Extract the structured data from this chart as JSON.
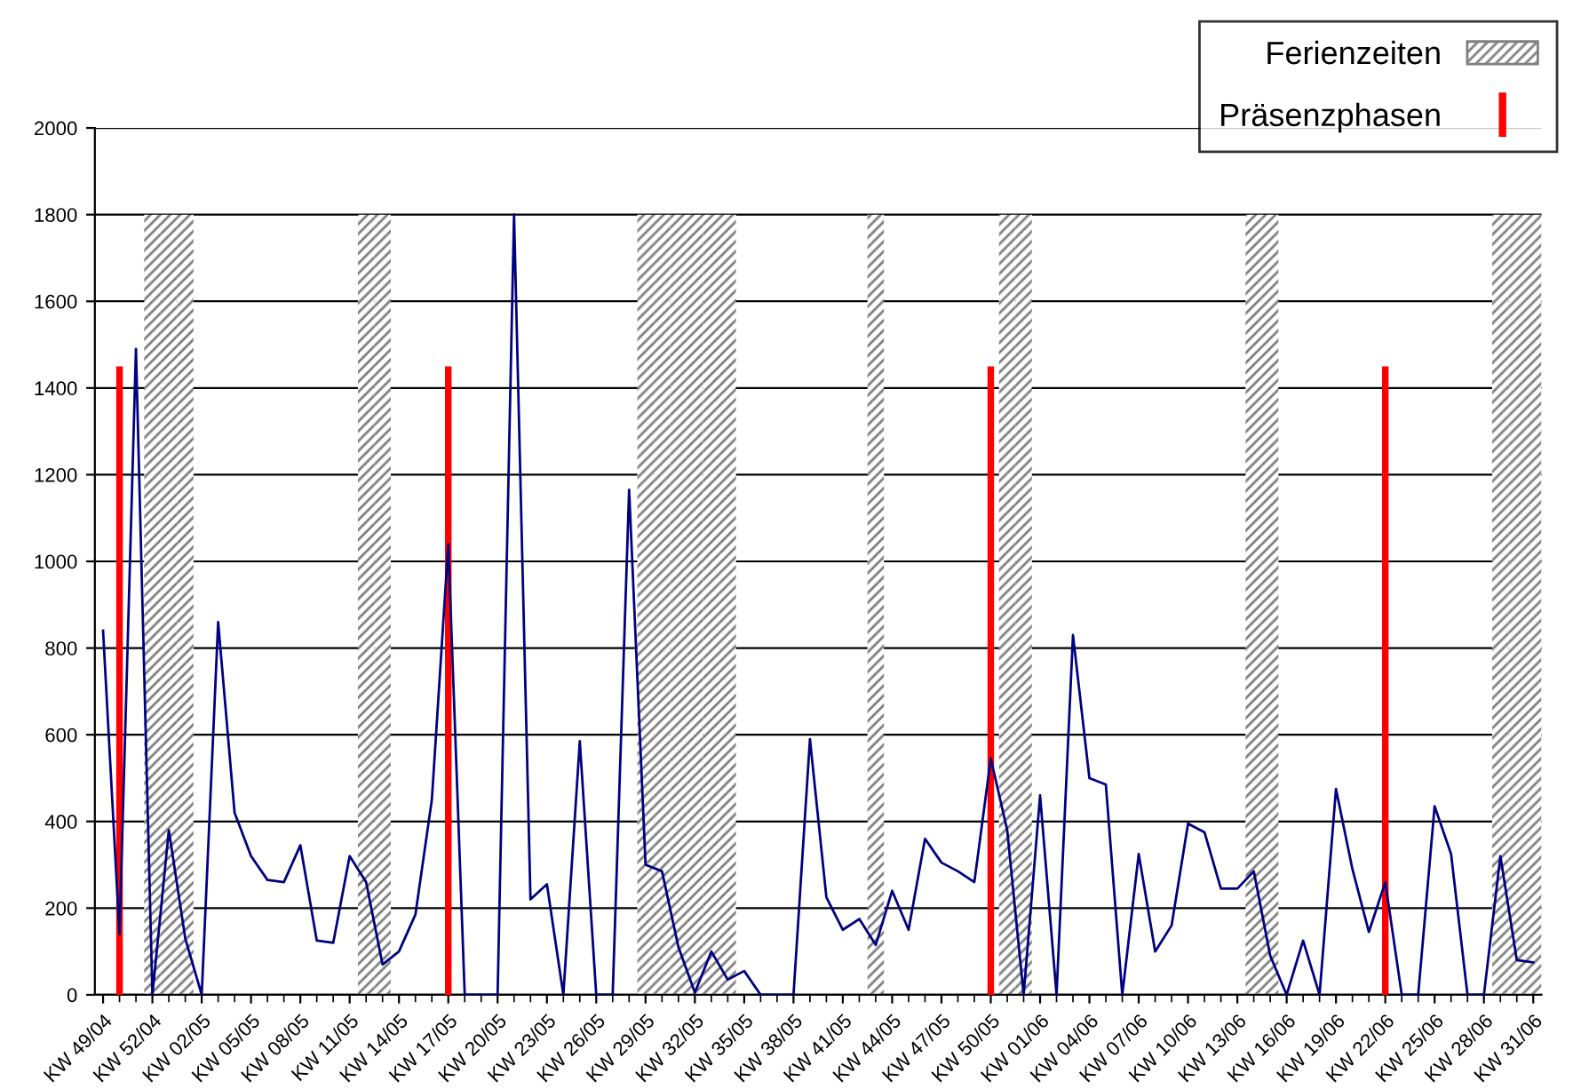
{
  "chart_data": {
    "type": "line",
    "categories": [
      "KW 49/04",
      null,
      null,
      "KW 52/04",
      null,
      null,
      "KW 02/05",
      null,
      null,
      "KW 05/05",
      null,
      null,
      "KW 08/05",
      null,
      null,
      "KW 11/05",
      null,
      null,
      "KW 14/05",
      null,
      null,
      "KW 17/05",
      null,
      null,
      "KW 20/05",
      null,
      null,
      "KW 23/05",
      null,
      null,
      "KW 26/05",
      null,
      null,
      "KW 29/05",
      null,
      null,
      "KW 32/05",
      null,
      null,
      "KW 35/05",
      null,
      null,
      "KW 38/05",
      null,
      null,
      "KW 41/05",
      null,
      null,
      "KW 44/05",
      null,
      null,
      "KW 47/05",
      null,
      null,
      "KW 50/05",
      null,
      null,
      "KW 01/06",
      null,
      null,
      "KW 04/06",
      null,
      null,
      "KW 07/06",
      null,
      null,
      "KW 10/06",
      null,
      null,
      "KW 13/06",
      null,
      null,
      "KW 16/06",
      null,
      null,
      "KW 19/06",
      null,
      null,
      "KW 22/06",
      null,
      null,
      "KW 25/06",
      null,
      null,
      "KW 28/06",
      null,
      null,
      "KW 31/06"
    ],
    "series": [
      {
        "name": "Ferienzeiten",
        "type": "bar",
        "color": "#808080",
        "values": [
          null,
          null,
          null,
          1800,
          1800,
          1800,
          null,
          null,
          null,
          null,
          null,
          null,
          null,
          null,
          null,
          null,
          1800,
          1800,
          null,
          null,
          null,
          null,
          null,
          null,
          null,
          null,
          null,
          null,
          null,
          null,
          null,
          null,
          null,
          1800,
          1800,
          1800,
          1800,
          1800,
          1800,
          null,
          null,
          null,
          null,
          null,
          null,
          null,
          null,
          1800,
          null,
          null,
          null,
          null,
          null,
          null,
          null,
          1800,
          1800,
          null,
          null,
          null,
          null,
          null,
          null,
          null,
          null,
          null,
          null,
          null,
          null,
          null,
          1800,
          1800,
          null,
          null,
          null,
          null,
          null,
          null,
          null,
          null,
          null,
          null,
          null,
          null,
          null,
          1800,
          1800,
          1800
        ]
      },
      {
        "color": "#000080",
        "values": [
          840,
          140,
          1490,
          0,
          380,
          130,
          0,
          860,
          420,
          320,
          265,
          260,
          345,
          125,
          120,
          320,
          260,
          70,
          100,
          185,
          450,
          1040,
          0,
          0,
          0,
          1800,
          220,
          255,
          0,
          585,
          0,
          0,
          1165,
          300,
          285,
          110,
          5,
          100,
          35,
          55,
          0,
          0,
          0,
          590,
          225,
          150,
          175,
          115,
          240,
          150,
          360,
          305,
          285,
          260,
          545,
          380,
          0,
          460,
          0,
          830,
          500,
          485,
          0,
          325,
          100,
          160,
          395,
          375,
          245,
          245,
          285,
          90,
          0,
          125,
          0,
          475,
          290,
          145,
          260,
          0,
          0,
          435,
          325,
          0,
          0,
          320,
          80,
          75
        ]
      },
      {
        "name": "Präsenzphasen",
        "type": "bar",
        "color": "#ff0000",
        "values": [
          null,
          1450,
          null,
          null,
          null,
          null,
          null,
          null,
          null,
          null,
          null,
          null,
          null,
          null,
          null,
          null,
          null,
          null,
          null,
          null,
          null,
          1450,
          null,
          null,
          null,
          null,
          null,
          null,
          null,
          null,
          null,
          null,
          null,
          null,
          null,
          null,
          null,
          null,
          null,
          null,
          null,
          null,
          null,
          null,
          null,
          null,
          null,
          null,
          null,
          null,
          null,
          null,
          null,
          null,
          1450,
          null,
          null,
          null,
          null,
          null,
          null,
          null,
          null,
          null,
          null,
          null,
          null,
          null,
          null,
          null,
          null,
          null,
          null,
          null,
          null,
          null,
          null,
          null,
          1450,
          null,
          null,
          null,
          null,
          null,
          null,
          null,
          null,
          null
        ]
      }
    ],
    "ylim": [
      0,
      2000
    ],
    "yticks": [
      0,
      200,
      400,
      600,
      800,
      1000,
      1200,
      1400,
      1600,
      1800,
      2000
    ],
    "grid": "y",
    "legend": "top right"
  }
}
